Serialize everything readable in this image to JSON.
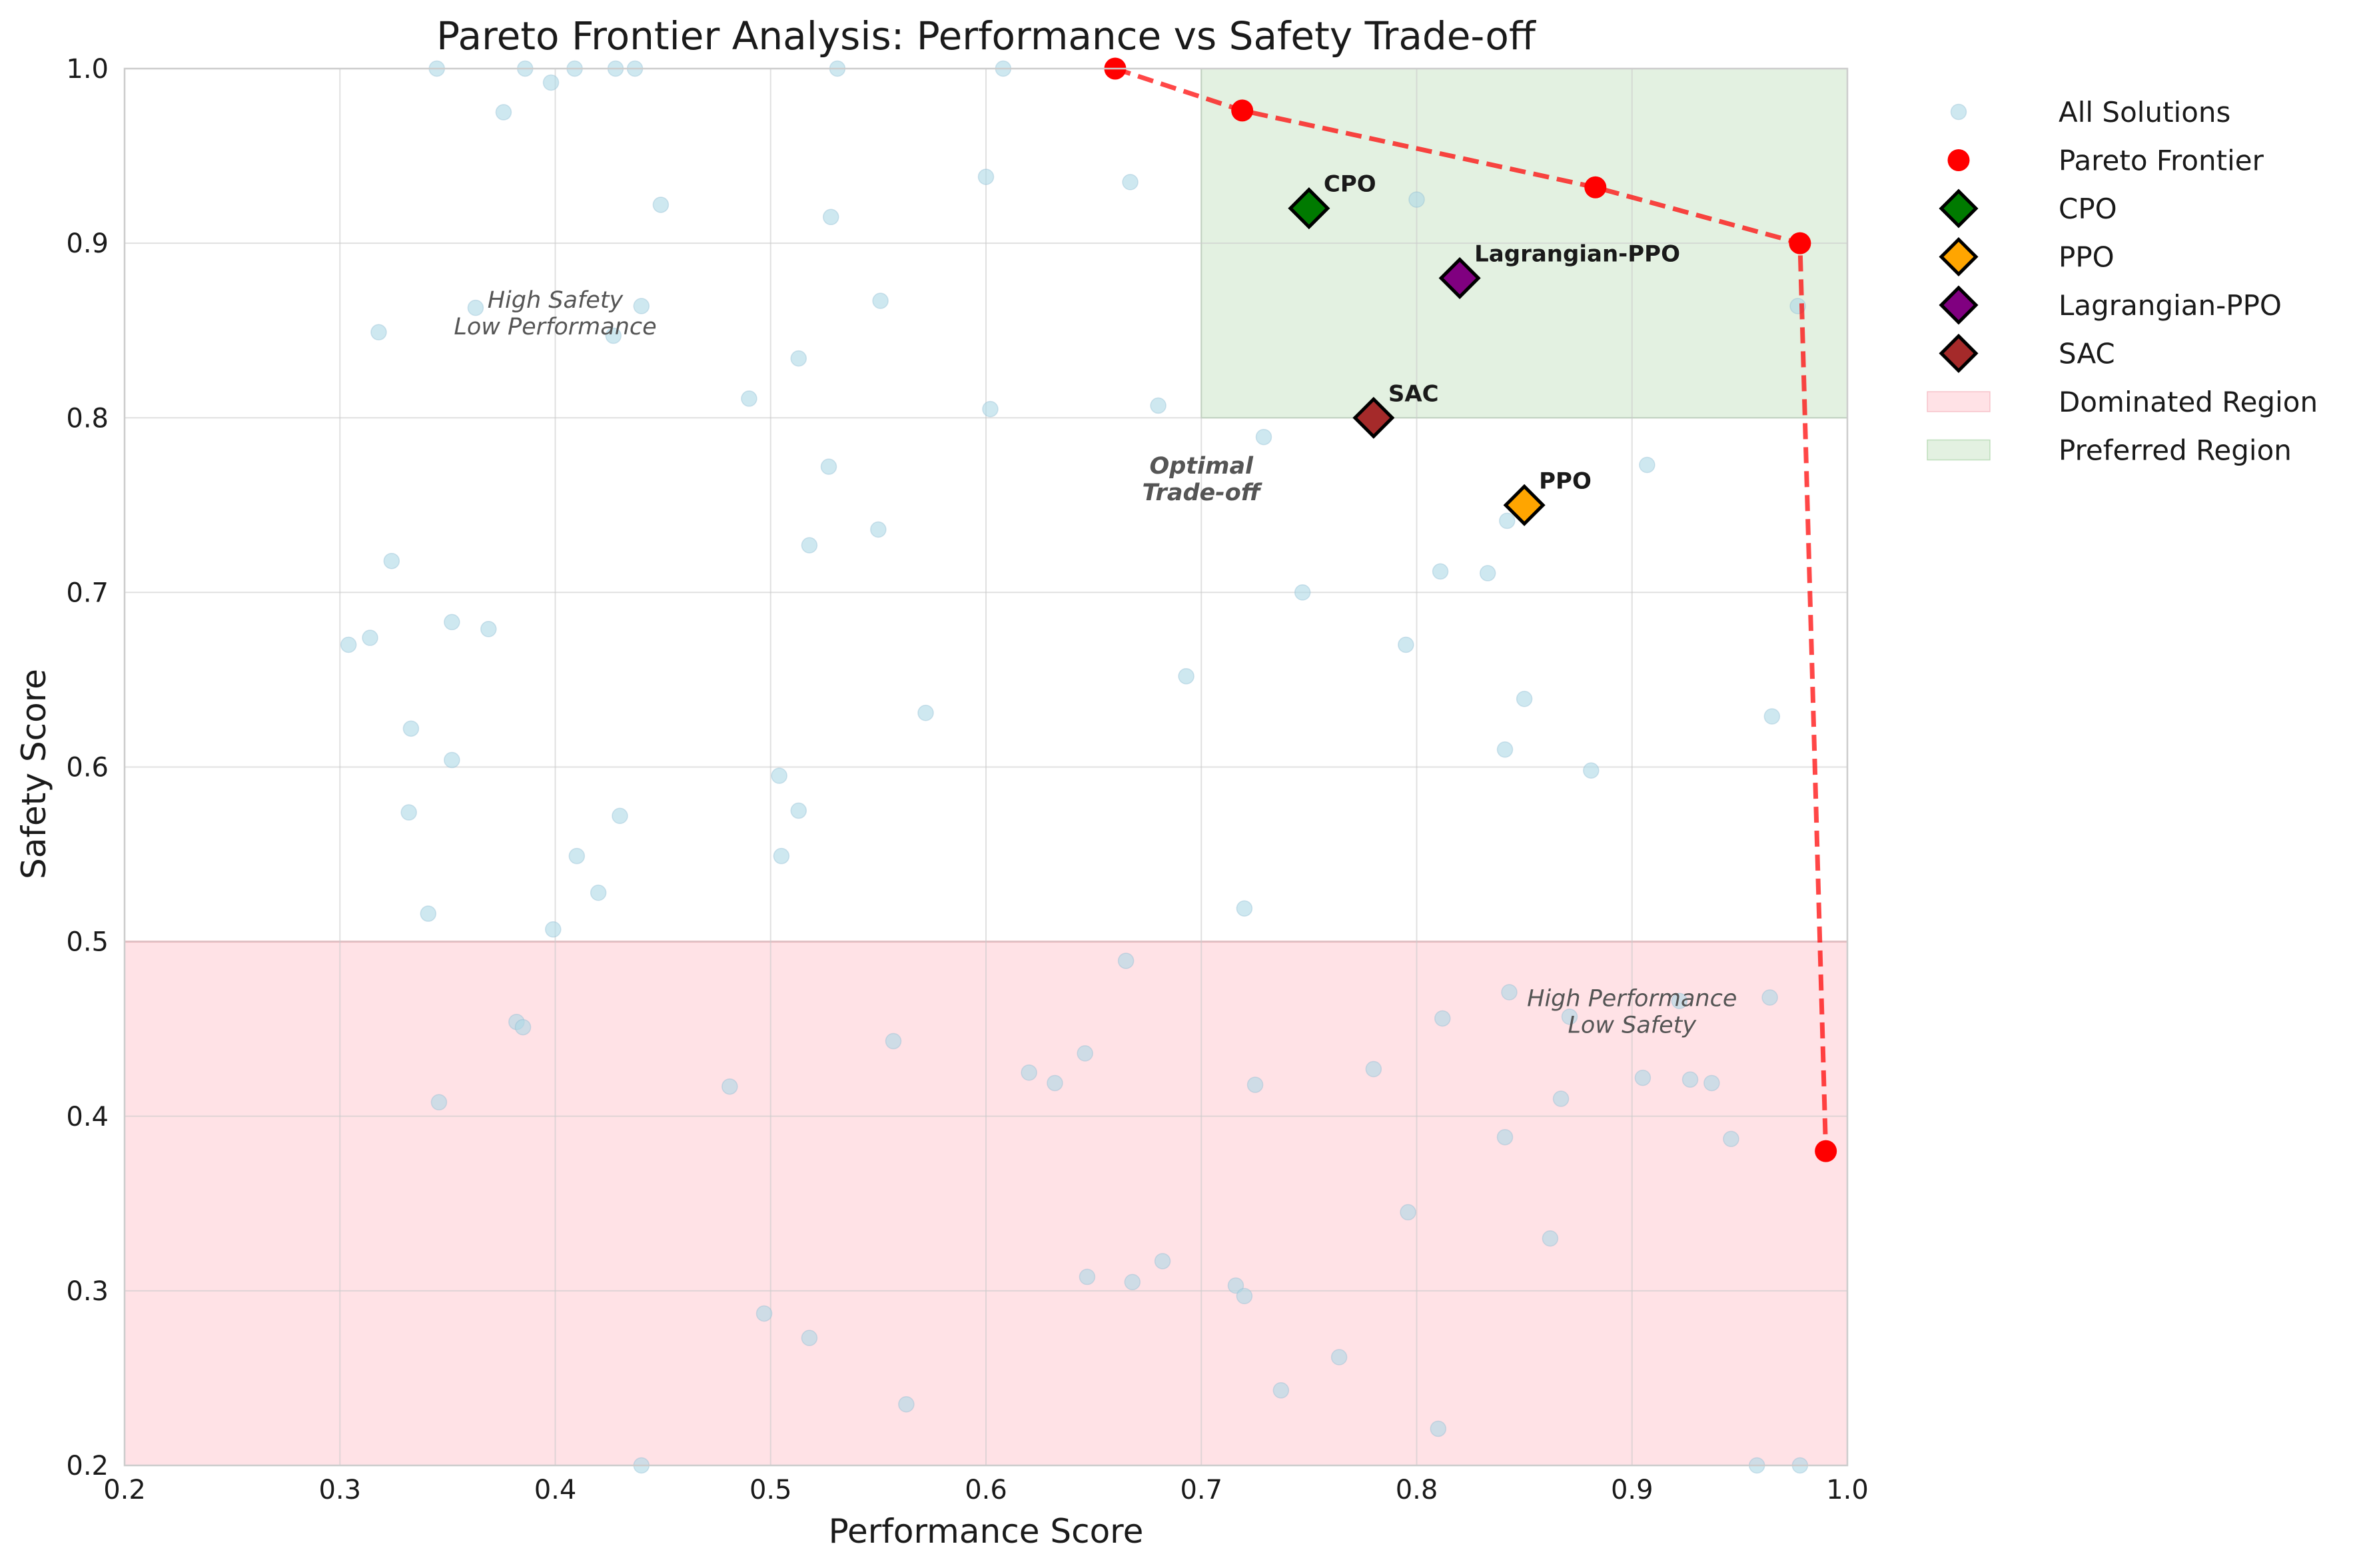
{
  "chart_data": {
    "type": "scatter",
    "title": "Pareto Frontier Analysis: Performance vs Safety Trade-off",
    "xlabel": "Performance Score",
    "ylabel": "Safety Score",
    "xlim": [
      0.2,
      1.0
    ],
    "ylim": [
      0.2,
      1.0
    ],
    "xticks": [
      "0.2",
      "0.3",
      "0.4",
      "0.5",
      "0.6",
      "0.7",
      "0.8",
      "0.9",
      "1.0"
    ],
    "yticks": [
      "0.2",
      "0.3",
      "0.4",
      "0.5",
      "0.6",
      "0.7",
      "0.8",
      "0.9",
      "1.0"
    ],
    "grid": true,
    "legend_position": "outside-right-top",
    "regions": {
      "dominated": {
        "label": "Dominated Region",
        "x": [
          0.2,
          1.0
        ],
        "y": [
          0.2,
          0.5
        ],
        "color": "#ffb6c1"
      },
      "preferred": {
        "label": "Preferred Region",
        "x": [
          0.7,
          1.0
        ],
        "y": [
          0.8,
          1.0
        ],
        "color": "#b9dcb5"
      }
    },
    "all_solutions": {
      "label": "All Solutions",
      "color": "#add8e6",
      "points": [
        [
          0.345,
          1.0
        ],
        [
          0.386,
          1.0
        ],
        [
          0.409,
          1.0
        ],
        [
          0.428,
          1.0
        ],
        [
          0.437,
          1.0
        ],
        [
          0.531,
          1.0
        ],
        [
          0.608,
          1.0
        ],
        [
          0.376,
          0.975
        ],
        [
          0.398,
          0.992
        ],
        [
          0.449,
          0.922
        ],
        [
          0.528,
          0.915
        ],
        [
          0.6,
          0.938
        ],
        [
          0.667,
          0.935
        ],
        [
          0.8,
          0.925
        ],
        [
          0.318,
          0.849
        ],
        [
          0.363,
          0.863
        ],
        [
          0.427,
          0.847
        ],
        [
          0.44,
          0.864
        ],
        [
          0.513,
          0.834
        ],
        [
          0.551,
          0.867
        ],
        [
          0.49,
          0.811
        ],
        [
          0.602,
          0.805
        ],
        [
          0.68,
          0.807
        ],
        [
          0.729,
          0.789
        ],
        [
          0.977,
          0.864
        ],
        [
          0.527,
          0.772
        ],
        [
          0.907,
          0.773
        ],
        [
          0.518,
          0.727
        ],
        [
          0.55,
          0.736
        ],
        [
          0.842,
          0.741
        ],
        [
          0.324,
          0.718
        ],
        [
          0.811,
          0.712
        ],
        [
          0.833,
          0.711
        ],
        [
          0.747,
          0.7
        ],
        [
          0.304,
          0.67
        ],
        [
          0.314,
          0.674
        ],
        [
          0.352,
          0.683
        ],
        [
          0.369,
          0.679
        ],
        [
          0.795,
          0.67
        ],
        [
          0.693,
          0.652
        ],
        [
          0.85,
          0.639
        ],
        [
          0.572,
          0.631
        ],
        [
          0.965,
          0.629
        ],
        [
          0.333,
          0.622
        ],
        [
          0.352,
          0.604
        ],
        [
          0.841,
          0.61
        ],
        [
          0.504,
          0.595
        ],
        [
          0.881,
          0.598
        ],
        [
          0.332,
          0.574
        ],
        [
          0.43,
          0.572
        ],
        [
          0.513,
          0.575
        ],
        [
          0.41,
          0.549
        ],
        [
          0.505,
          0.549
        ],
        [
          0.42,
          0.528
        ],
        [
          0.341,
          0.516
        ],
        [
          0.399,
          0.507
        ],
        [
          0.72,
          0.519
        ],
        [
          0.665,
          0.489
        ],
        [
          0.843,
          0.471
        ],
        [
          0.922,
          0.466
        ],
        [
          0.964,
          0.468
        ],
        [
          0.382,
          0.454
        ],
        [
          0.385,
          0.451
        ],
        [
          0.812,
          0.456
        ],
        [
          0.871,
          0.457
        ],
        [
          0.557,
          0.443
        ],
        [
          0.646,
          0.436
        ],
        [
          0.62,
          0.425
        ],
        [
          0.632,
          0.419
        ],
        [
          0.481,
          0.417
        ],
        [
          0.725,
          0.418
        ],
        [
          0.78,
          0.427
        ],
        [
          0.905,
          0.422
        ],
        [
          0.927,
          0.421
        ],
        [
          0.937,
          0.419
        ],
        [
          0.346,
          0.408
        ],
        [
          0.867,
          0.41
        ],
        [
          0.841,
          0.388
        ],
        [
          0.946,
          0.387
        ],
        [
          0.796,
          0.345
        ],
        [
          0.862,
          0.33
        ],
        [
          0.682,
          0.317
        ],
        [
          0.647,
          0.308
        ],
        [
          0.668,
          0.305
        ],
        [
          0.716,
          0.303
        ],
        [
          0.72,
          0.297
        ],
        [
          0.497,
          0.287
        ],
        [
          0.518,
          0.273
        ],
        [
          0.764,
          0.262
        ],
        [
          0.737,
          0.243
        ],
        [
          0.563,
          0.235
        ],
        [
          0.81,
          0.221
        ],
        [
          0.44,
          0.2
        ],
        [
          0.958,
          0.2
        ],
        [
          0.978,
          0.2
        ]
      ]
    },
    "pareto_frontier": {
      "label": "Pareto Frontier",
      "color": "#ff0000",
      "points": [
        [
          0.66,
          1.0
        ],
        [
          0.719,
          0.976
        ],
        [
          0.883,
          0.932
        ],
        [
          0.978,
          0.9
        ],
        [
          0.99,
          0.38
        ]
      ]
    },
    "methods": [
      {
        "name": "CPO",
        "x": 0.75,
        "y": 0.92,
        "color": "#007a00"
      },
      {
        "name": "PPO",
        "x": 0.85,
        "y": 0.75,
        "color": "#ffa500"
      },
      {
        "name": "Lagrangian-PPO",
        "x": 0.82,
        "y": 0.88,
        "color": "#800080"
      },
      {
        "name": "SAC",
        "x": 0.78,
        "y": 0.8,
        "color": "#a52a2a"
      }
    ],
    "annotations": [
      {
        "lines": [
          "High Safety",
          "Low Performance"
        ],
        "x": 0.4,
        "y": 0.86,
        "style": "italic"
      },
      {
        "lines": [
          "Optimal",
          "Trade-off"
        ],
        "x": 0.7,
        "y": 0.765,
        "style": "bold-italic"
      },
      {
        "lines": [
          "High Performance",
          "Low Safety"
        ],
        "x": 0.9,
        "y": 0.46,
        "style": "italic"
      }
    ],
    "legend": [
      "All Solutions",
      "Pareto Frontier",
      "CPO",
      "PPO",
      "Lagrangian-PPO",
      "SAC",
      "Dominated Region",
      "Preferred Region"
    ]
  }
}
